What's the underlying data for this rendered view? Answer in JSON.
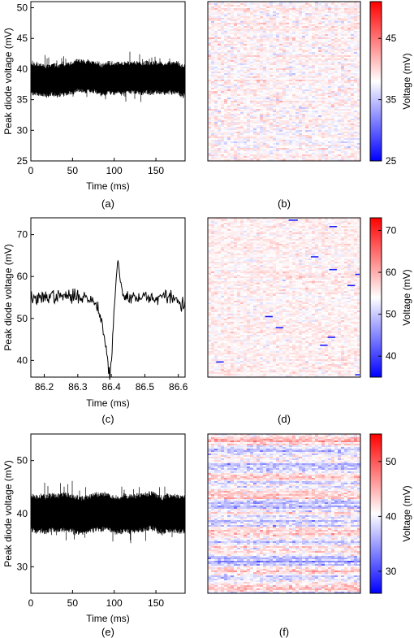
{
  "panels": [
    {
      "id": "a",
      "caption": "(a)",
      "chart_data": {
        "type": "line",
        "xlabel": "Time (ms)",
        "ylabel": "Peak diode voltage (mV)",
        "xlim": [
          0,
          185
        ],
        "ylim": [
          25,
          51
        ],
        "xticks": [
          0,
          50,
          100,
          150
        ],
        "yticks": [
          25,
          30,
          35,
          40,
          45,
          50
        ],
        "series": [
          {
            "style": "dense-noise",
            "color": "#000000",
            "x_range": [
              0,
              185
            ],
            "mean_mV": 38.3,
            "band_mV": [
              35.5,
              41
            ],
            "extremes_mV": [
              34.5,
              42.5
            ]
          }
        ]
      }
    },
    {
      "id": "b",
      "caption": "(b)",
      "chart_data": {
        "type": "heatmap",
        "colormap": [
          "#0000ff",
          "#ffffff",
          "#ff0000"
        ],
        "clim": [
          25,
          51
        ],
        "colorbar_label": "Voltage (mV)",
        "colorbar_ticks": [
          25,
          35,
          45
        ],
        "background_mV": 38.5,
        "noise_mV": 2.5,
        "axis_ticks": "none"
      }
    },
    {
      "id": "c",
      "caption": "(c)",
      "chart_data": {
        "type": "line",
        "xlabel": "Time (ms)",
        "ylabel": "Peak diode voltage (mV)",
        "xlim": [
          86.16,
          86.62
        ],
        "ylim": [
          36,
          74
        ],
        "xticks": [
          86.2,
          86.3,
          86.4,
          86.5,
          86.6
        ],
        "yticks": [
          40,
          50,
          60,
          70
        ],
        "series": [
          {
            "color": "#000000",
            "points": [
              [
                86.16,
                55
              ],
              [
                86.18,
                54.5
              ],
              [
                86.2,
                55
              ],
              [
                86.22,
                55.5
              ],
              [
                86.24,
                55
              ],
              [
                86.26,
                55.5
              ],
              [
                86.28,
                55
              ],
              [
                86.3,
                55.5
              ],
              [
                86.32,
                55
              ],
              [
                86.34,
                54.5
              ],
              [
                86.36,
                53
              ],
              [
                86.37,
                50
              ],
              [
                86.38,
                45
              ],
              [
                86.39,
                40
              ],
              [
                86.395,
                36
              ],
              [
                86.4,
                39
              ],
              [
                86.405,
                47
              ],
              [
                86.41,
                55
              ],
              [
                86.415,
                60
              ],
              [
                86.42,
                63.5
              ],
              [
                86.425,
                60
              ],
              [
                86.43,
                57
              ],
              [
                86.44,
                55
              ],
              [
                86.46,
                55.5
              ],
              [
                86.48,
                54.5
              ],
              [
                86.5,
                55.5
              ],
              [
                86.52,
                55
              ],
              [
                86.54,
                54.5
              ],
              [
                86.56,
                55.5
              ],
              [
                86.58,
                55
              ],
              [
                86.6,
                54
              ],
              [
                86.62,
                53
              ]
            ],
            "noise_mV": 0.8
          }
        ]
      }
    },
    {
      "id": "d",
      "caption": "(d)",
      "chart_data": {
        "type": "heatmap",
        "colormap": [
          "#0000ff",
          "#ffffff",
          "#ff0000"
        ],
        "clim": [
          35,
          73
        ],
        "colorbar_label": "Voltage (mV)",
        "colorbar_ticks": [
          40,
          50,
          60,
          70
        ],
        "background_mV": 55,
        "noise_mV": 3,
        "axis_ticks": "none",
        "dips": [
          {
            "col": 0.56,
            "row": 0.015,
            "len": 0.06,
            "mV": 37
          },
          {
            "col": 0.82,
            "row": 0.055,
            "len": 0.05,
            "mV": 37
          },
          {
            "col": 0.7,
            "row": 0.245,
            "len": 0.05,
            "mV": 37
          },
          {
            "col": 0.82,
            "row": 0.325,
            "len": 0.05,
            "mV": 37
          },
          {
            "col": 0.98,
            "row": 0.355,
            "len": 0.03,
            "mV": 37
          },
          {
            "col": 0.94,
            "row": 0.425,
            "len": 0.05,
            "mV": 37
          },
          {
            "col": 0.4,
            "row": 0.62,
            "len": 0.05,
            "mV": 37
          },
          {
            "col": 0.47,
            "row": 0.69,
            "len": 0.05,
            "mV": 37
          },
          {
            "col": 0.81,
            "row": 0.75,
            "len": 0.05,
            "mV": 37
          },
          {
            "col": 0.76,
            "row": 0.8,
            "len": 0.05,
            "mV": 37
          },
          {
            "col": 0.08,
            "row": 0.905,
            "len": 0.05,
            "mV": 37
          },
          {
            "col": 0.98,
            "row": 0.985,
            "len": 0.03,
            "mV": 37
          }
        ]
      }
    },
    {
      "id": "e",
      "caption": "(e)",
      "chart_data": {
        "type": "line",
        "xlabel": "Time (ms)",
        "ylabel": "Peak diode voltage (mV)",
        "xlim": [
          0,
          185
        ],
        "ylim": [
          25,
          55
        ],
        "xticks": [
          0,
          50,
          100,
          150
        ],
        "yticks": [
          30,
          40,
          50
        ],
        "series": [
          {
            "style": "dense-noise",
            "color": "#000000",
            "x_range": [
              0,
              185
            ],
            "mean_mV": 40.2,
            "band_mV": [
              36.5,
              44
            ],
            "extremes_mV": [
              34.5,
              47
            ]
          }
        ]
      }
    },
    {
      "id": "f",
      "caption": "(f)",
      "chart_data": {
        "type": "heatmap",
        "colormap": [
          "#0000ff",
          "#ffffff",
          "#ff0000"
        ],
        "clim": [
          26,
          55
        ],
        "colorbar_label": "Voltage (mV)",
        "colorbar_ticks": [
          30,
          40,
          50
        ],
        "background_mV": 40.5,
        "noise_mV": 3.5,
        "axis_ticks": "none",
        "banded": true
      }
    }
  ]
}
